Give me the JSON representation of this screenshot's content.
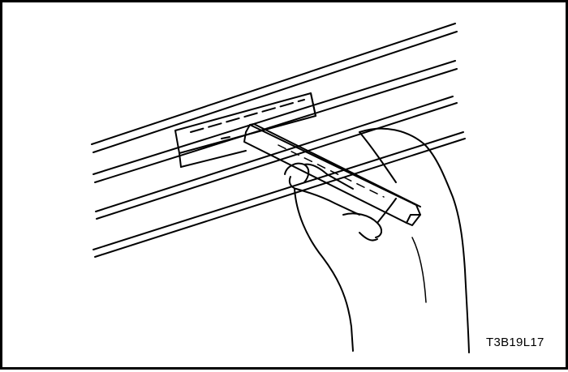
{
  "figure": {
    "code": "T3B19L17"
  },
  "colors": {
    "line": "#000000",
    "background": "#ffffff"
  }
}
